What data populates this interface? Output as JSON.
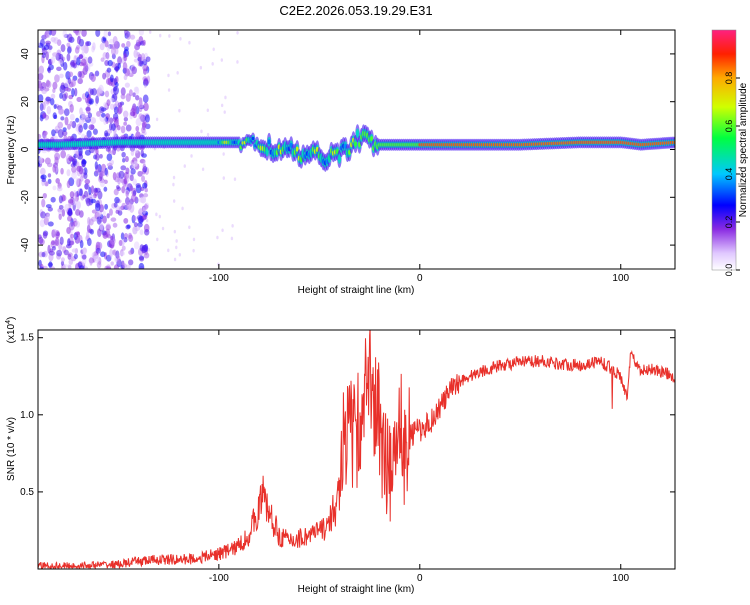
{
  "title": "C2E2.2026.053.19.29.E31",
  "chart_data": [
    {
      "type": "heatmap",
      "name": "spectrogram",
      "xlabel": "Height of straight line (km)",
      "ylabel": "Frequency (Hz)",
      "xlim": [
        -190,
        127
      ],
      "ylim": [
        -50,
        50
      ],
      "xticks": [
        -100,
        0,
        100
      ],
      "yticks": [
        -40,
        -20,
        0,
        20,
        40
      ],
      "colorbar": {
        "label": "Normalized spectral amplitude",
        "range": [
          0,
          1
        ],
        "ticks": [
          0.0,
          0.2,
          0.4,
          0.6,
          0.8
        ]
      },
      "ridge": {
        "description_points_height_km": [
          -180,
          -150,
          -120,
          -100,
          -90,
          -80,
          -70,
          -60,
          -50,
          -40,
          -30,
          -25,
          -20,
          -10,
          0,
          20,
          50,
          80,
          100,
          110,
          127
        ],
        "frequency_hz": [
          2,
          3,
          3,
          3,
          3,
          2,
          0,
          -2,
          -3,
          -2,
          5,
          3,
          2,
          2,
          2,
          2,
          2,
          3,
          3,
          2,
          3
        ]
      }
    },
    {
      "type": "line",
      "name": "snr",
      "xlabel": "Height of straight line (km)",
      "ylabel": "SNR (10 * v/v)",
      "multiplier": "(x10",
      "multiplier_exp": "4",
      "multiplier_close": ")",
      "xlim": [
        -190,
        127
      ],
      "ylim": [
        0,
        1.55
      ],
      "xticks": [
        -100,
        0,
        100
      ],
      "yticks": [
        0.5,
        1.0,
        1.5
      ],
      "ytick_labels": [
        "0.5",
        "1.0",
        "1.5"
      ],
      "color": "#e8302a",
      "series": [
        {
          "name": "SNR",
          "x": [
            -190,
            -170,
            -150,
            -140,
            -130,
            -120,
            -110,
            -100,
            -95,
            -90,
            -85,
            -80,
            -78,
            -75,
            -70,
            -65,
            -60,
            -55,
            -50,
            -45,
            -42,
            -40,
            -38,
            -35,
            -32,
            -30,
            -28,
            -25,
            -22,
            -20,
            -18,
            -15,
            -12,
            -10,
            -8,
            -5,
            -2,
            0,
            5,
            10,
            15,
            20,
            30,
            40,
            50,
            60,
            70,
            80,
            90,
            95,
            100,
            103,
            105,
            110,
            115,
            120,
            127
          ],
          "y": [
            0.02,
            0.02,
            0.03,
            0.05,
            0.06,
            0.06,
            0.07,
            0.1,
            0.12,
            0.15,
            0.22,
            0.4,
            0.48,
            0.36,
            0.22,
            0.18,
            0.2,
            0.22,
            0.24,
            0.3,
            0.38,
            0.55,
            0.75,
            1.05,
            0.95,
            0.8,
            1.1,
            1.3,
            1.05,
            0.85,
            0.7,
            0.55,
            0.75,
            0.9,
            0.88,
            0.85,
            0.9,
            0.9,
            0.95,
            1.05,
            1.15,
            1.22,
            1.28,
            1.32,
            1.34,
            1.35,
            1.33,
            1.32,
            1.35,
            1.3,
            1.25,
            1.1,
            1.4,
            1.28,
            1.3,
            1.28,
            1.25
          ]
        }
      ]
    }
  ]
}
